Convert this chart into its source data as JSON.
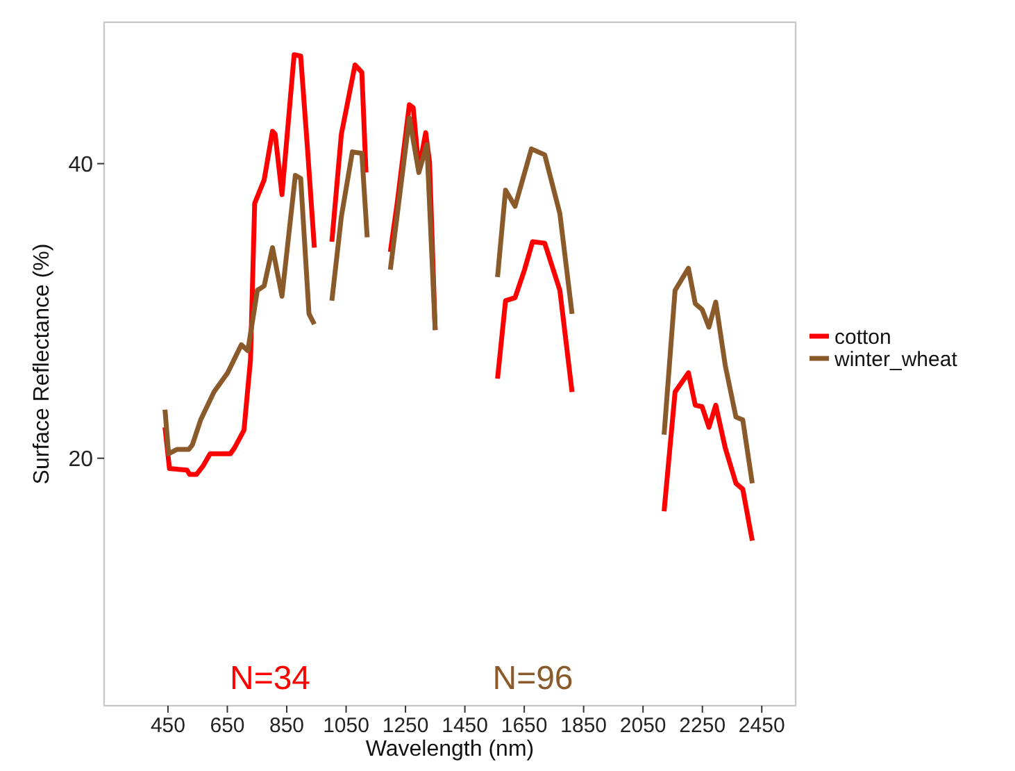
{
  "chart_data": {
    "type": "line",
    "xlabel": "Wavelength (nm)",
    "ylabel": "Surface Reflectance (%)",
    "xlim": [
      235,
      2564
    ],
    "ylim": [
      3.2,
      49.6
    ],
    "xticks": [
      450,
      650,
      850,
      1050,
      1250,
      1450,
      1650,
      1850,
      2050,
      2250,
      2450
    ],
    "yticks": [
      20,
      40
    ],
    "grid": false,
    "legend": "right",
    "marker": "none",
    "line_style": "solid",
    "annotations": [
      "N=34",
      "N=96"
    ],
    "series": [
      {
        "name": "cotton",
        "color": "#ff0000",
        "x": [
          440,
          455,
          514,
          523,
          546,
          569,
          592,
          660,
          674,
          706,
          728,
          742,
          774,
          802,
          811,
          834,
          875,
          897,
          920,
          943,
          970,
          1002,
          1034,
          1080,
          1103,
          1117,
          1160,
          1199,
          1222,
          1263,
          1276,
          1295,
          1318,
          1331,
          1350,
          1450,
          1560,
          1587,
          1619,
          1651,
          1678,
          1719,
          1770,
          1811,
          1960,
          2121,
          2158,
          2203,
          2226,
          2249,
          2272,
          2295,
          2327,
          2363,
          2386,
          2418
        ],
        "values": [
          22.1,
          19.3,
          19.2,
          18.9,
          18.9,
          19.5,
          20.3,
          20.3,
          20.7,
          21.9,
          26.7,
          37.3,
          38.9,
          42.2,
          42,
          37.9,
          47.4,
          47.3,
          41,
          34.3,
          null,
          34.7,
          42,
          46.7,
          46.2,
          39.4,
          null,
          34,
          37.3,
          44,
          43.8,
          39.6,
          42.1,
          40.1,
          28.7,
          null,
          25.4,
          30.7,
          30.9,
          32.8,
          34.7,
          34.6,
          31.4,
          24.5,
          null,
          16.4,
          24.5,
          25.8,
          23.6,
          23.5,
          22.1,
          23.6,
          20.7,
          18.3,
          17.9,
          14.4
        ]
      },
      {
        "name": "winter_wheat",
        "color": "#8b5a2b",
        "x": [
          440,
          452,
          480,
          520,
          532,
          560,
          605,
          651,
          697,
          719,
          751,
          774,
          802,
          834,
          879,
          897,
          925,
          943,
          970,
          1002,
          1034,
          1071,
          1103,
          1121,
          1160,
          1199,
          1263,
          1295,
          1322,
          1350,
          1450,
          1560,
          1587,
          1619,
          1674,
          1719,
          1770,
          1811,
          1960,
          2121,
          2158,
          2203,
          2226,
          2249,
          2272,
          2295,
          2327,
          2363,
          2386,
          2418
        ],
        "values": [
          23.3,
          20.3,
          20.6,
          20.6,
          20.9,
          22.6,
          24.5,
          25.8,
          27.7,
          27.3,
          31.4,
          31.7,
          34.3,
          31,
          39.2,
          39,
          29.8,
          29.1,
          null,
          30.7,
          36.4,
          40.8,
          40.7,
          35,
          null,
          32.8,
          43.1,
          39.4,
          41.3,
          28.7,
          null,
          32.3,
          38.2,
          37.1,
          41,
          40.6,
          36.6,
          29.8,
          null,
          21.6,
          31.4,
          32.9,
          30.5,
          30.1,
          28.9,
          30.6,
          26.3,
          22.8,
          22.6,
          18.3
        ]
      }
    ]
  }
}
